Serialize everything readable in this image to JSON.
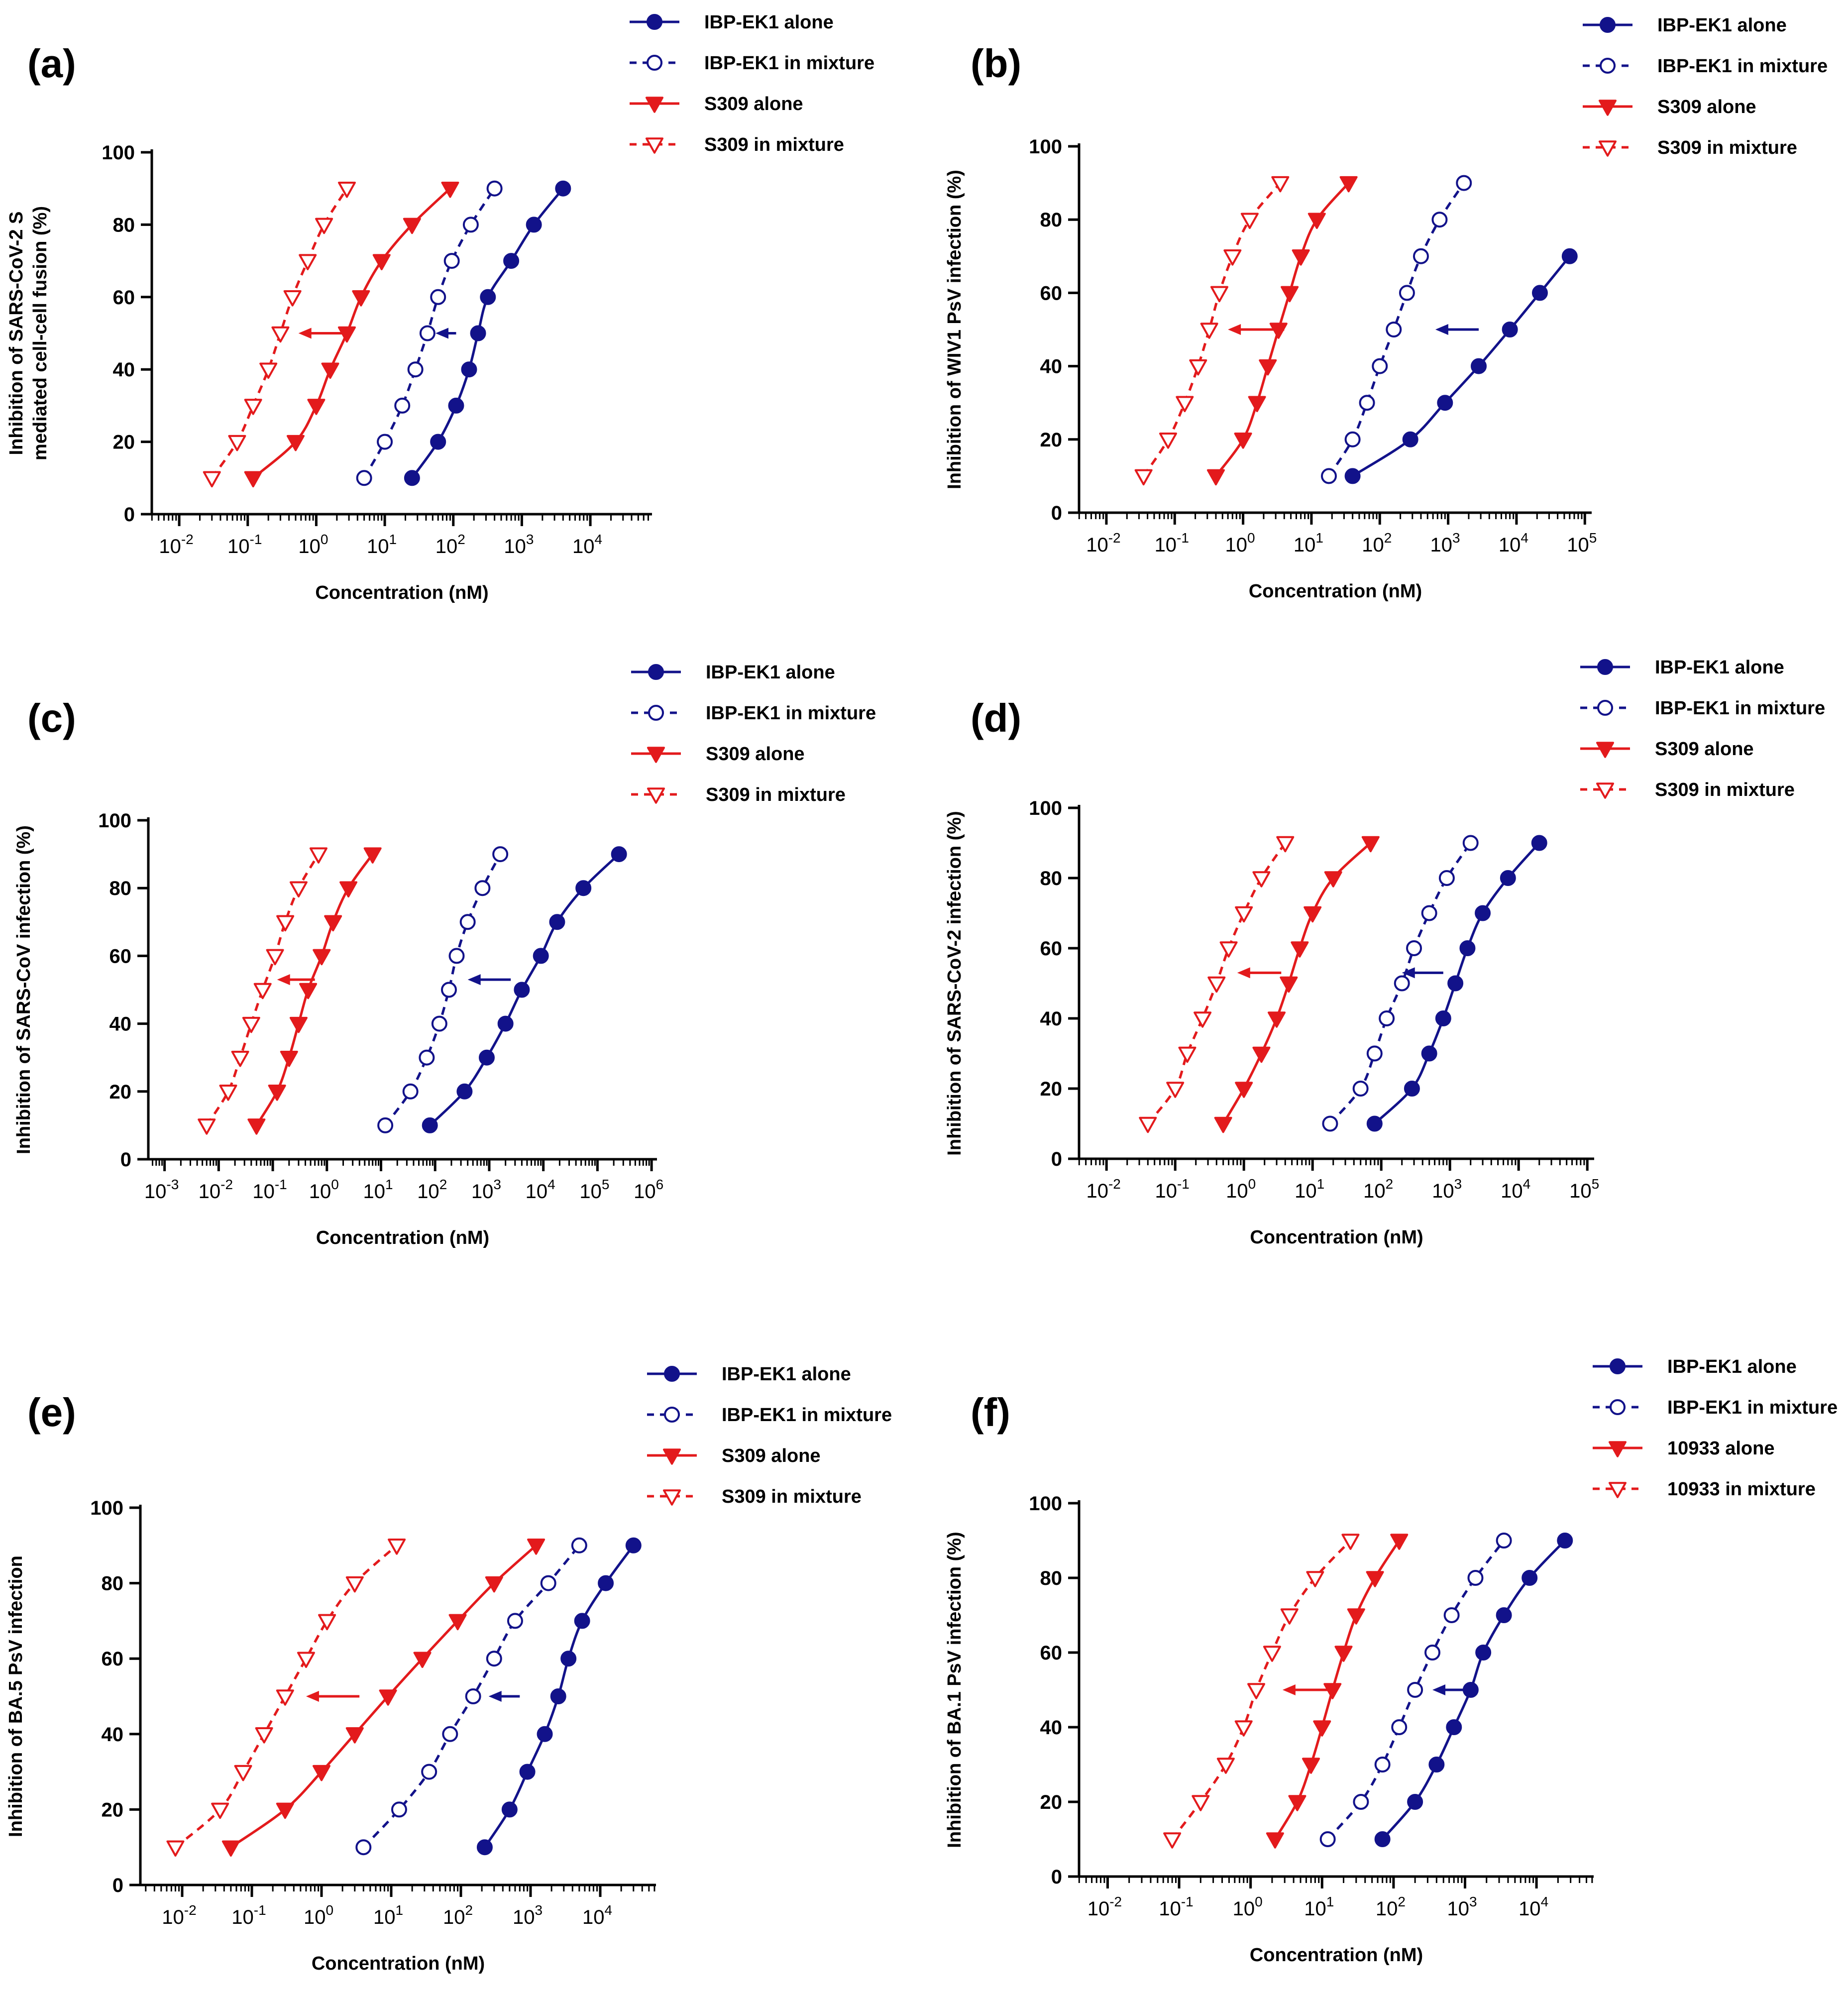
{
  "figure": {
    "note": "Six dose-response panels"
  },
  "colors": {
    "ibp": "#12128a",
    "s309": "#e31a1c",
    "axis": "#000000"
  },
  "chart_data": [
    {
      "type": "line",
      "panel_label": "(a)",
      "title": "",
      "xlabel": "Concentration (nM)",
      "ylabel_lines": [
        "Inhibition of SARS-CoV-2 S",
        "mediated cell-cell fusion (%)"
      ],
      "x_scale": "log10",
      "xlim_log10": [
        -2.4,
        4.9
      ],
      "ylim": [
        0,
        100
      ],
      "yticks": [
        0,
        20,
        40,
        60,
        80,
        100
      ],
      "xtick_exponents": [
        "-2",
        "-1",
        "0",
        "1",
        "2",
        "3",
        "4"
      ],
      "legend": [
        "IBP-EK1 alone",
        "IBP-EK1 in mixture",
        "S309 alone",
        "S309 in mixture"
      ],
      "series": [
        {
          "name": "IBP-EK1 alone",
          "style": "solid",
          "marker": "circle-filled",
          "x": [
            25,
            60,
            110,
            170,
            230,
            320,
            700,
            1500,
            4000
          ],
          "y": [
            10,
            20,
            30,
            40,
            50,
            60,
            70,
            80,
            90
          ]
        },
        {
          "name": "IBP-EK1 in mixture",
          "style": "dashed",
          "marker": "circle-open",
          "x": [
            5,
            10,
            18,
            28,
            42,
            60,
            95,
            180,
            400
          ],
          "y": [
            10,
            20,
            30,
            40,
            50,
            60,
            70,
            80,
            90
          ]
        },
        {
          "name": "S309 alone",
          "style": "solid",
          "marker": "triangle-filled",
          "x": [
            0.12,
            0.5,
            1,
            1.6,
            2.8,
            4.5,
            9,
            25,
            90
          ],
          "y": [
            10,
            20,
            30,
            40,
            50,
            60,
            70,
            80,
            90
          ]
        },
        {
          "name": "S309 in mixture",
          "style": "dashed",
          "marker": "triangle-open",
          "x": [
            0.03,
            0.07,
            0.12,
            0.2,
            0.3,
            0.45,
            0.75,
            1.3,
            2.8
          ],
          "y": [
            10,
            20,
            30,
            40,
            50,
            60,
            70,
            80,
            90
          ]
        }
      ],
      "arrows": [
        {
          "color": "s309",
          "from": 2.5,
          "to": 0.55,
          "y": 50
        },
        {
          "color": "ibp",
          "from": 110,
          "to": 55,
          "y": 50
        }
      ]
    },
    {
      "type": "line",
      "panel_label": "(b)",
      "title": "",
      "xlabel": "Concentration (nM)",
      "ylabel_lines": [
        "Inhibition of WIV1 PsV infection (%)"
      ],
      "x_scale": "log10",
      "xlim_log10": [
        -2.4,
        5.1
      ],
      "ylim": [
        0,
        100
      ],
      "yticks": [
        0,
        20,
        40,
        60,
        80,
        100
      ],
      "xtick_exponents": [
        "-2",
        "-1",
        "0",
        "1",
        "2",
        "3",
        "4",
        "5"
      ],
      "legend": [
        "IBP-EK1 alone",
        "IBP-EK1 in mixture",
        "S309 alone",
        "S309 in mixture"
      ],
      "series": [
        {
          "name": "IBP-EK1 alone",
          "style": "solid",
          "marker": "circle-filled",
          "x": [
            40,
            280,
            900,
            2800,
            8000,
            22000,
            60000
          ],
          "y": [
            10,
            20,
            30,
            40,
            50,
            60,
            70
          ]
        },
        {
          "name": "IBP-EK1 in mixture",
          "style": "dashed",
          "marker": "circle-open",
          "x": [
            18,
            40,
            65,
            100,
            160,
            250,
            400,
            750,
            1700
          ],
          "y": [
            10,
            20,
            30,
            40,
            50,
            60,
            70,
            80,
            90
          ]
        },
        {
          "name": "S309 alone",
          "style": "solid",
          "marker": "triangle-filled",
          "x": [
            0.4,
            1,
            1.6,
            2.3,
            3.3,
            4.8,
            7,
            12,
            35
          ],
          "y": [
            10,
            20,
            30,
            40,
            50,
            60,
            70,
            80,
            90
          ]
        },
        {
          "name": "S309 in mixture",
          "style": "dashed",
          "marker": "triangle-open",
          "x": [
            0.035,
            0.08,
            0.14,
            0.22,
            0.32,
            0.45,
            0.7,
            1.25,
            3.5
          ],
          "y": [
            10,
            20,
            30,
            40,
            50,
            60,
            70,
            80,
            90
          ]
        }
      ],
      "arrows": [
        {
          "color": "s309",
          "from": 4,
          "to": 0.6,
          "y": 50
        },
        {
          "color": "ibp",
          "from": 2800,
          "to": 650,
          "y": 50
        }
      ]
    },
    {
      "type": "line",
      "panel_label": "(c)",
      "title": "",
      "xlabel": "Concentration (nM)",
      "ylabel_lines": [
        "Inhibition of SARS-CoV infection (%)"
      ],
      "x_scale": "log10",
      "xlim_log10": [
        -3.3,
        6.1
      ],
      "ylim": [
        0,
        100
      ],
      "yticks": [
        0,
        20,
        40,
        60,
        80,
        100
      ],
      "xtick_exponents": [
        "-3",
        "-2",
        "-1",
        "0",
        "1",
        "2",
        "3",
        "4",
        "5",
        "6"
      ],
      "legend": [
        "IBP-EK1 alone",
        "IBP-EK1 in mixture",
        "S309 alone",
        "S309 in mixture"
      ],
      "series": [
        {
          "name": "IBP-EK1 alone",
          "style": "solid",
          "marker": "circle-filled",
          "x": [
            80,
            350,
            900,
            2000,
            4000,
            9000,
            18000,
            55000,
            250000
          ],
          "y": [
            10,
            20,
            30,
            40,
            50,
            60,
            70,
            80,
            90
          ]
        },
        {
          "name": "IBP-EK1 in mixture",
          "style": "dashed",
          "marker": "circle-open",
          "x": [
            12,
            35,
            70,
            120,
            180,
            250,
            400,
            750,
            1600
          ],
          "y": [
            10,
            20,
            30,
            40,
            50,
            60,
            70,
            80,
            90
          ]
        },
        {
          "name": "S309 alone",
          "style": "solid",
          "marker": "triangle-filled",
          "x": [
            0.05,
            0.12,
            0.2,
            0.3,
            0.45,
            0.8,
            1.3,
            2.5,
            7
          ],
          "y": [
            10,
            20,
            30,
            40,
            50,
            60,
            70,
            80,
            90
          ]
        },
        {
          "name": "S309 in mixture",
          "style": "dashed",
          "marker": "triangle-open",
          "x": [
            0.006,
            0.015,
            0.025,
            0.04,
            0.065,
            0.11,
            0.17,
            0.3,
            0.7
          ],
          "y": [
            10,
            20,
            30,
            40,
            50,
            60,
            70,
            80,
            90
          ]
        }
      ],
      "arrows": [
        {
          "color": "s309",
          "from": 0.6,
          "to": 0.12,
          "y": 53
        },
        {
          "color": "ibp",
          "from": 2500,
          "to": 400,
          "y": 53
        }
      ]
    },
    {
      "type": "line",
      "panel_label": "(d)",
      "title": "",
      "xlabel": "Concentration (nM)",
      "ylabel_lines": [
        "Inhibition of SARS-CoV-2 infection (%)"
      ],
      "x_scale": "log10",
      "xlim_log10": [
        -2.4,
        5.1
      ],
      "ylim": [
        0,
        100
      ],
      "yticks": [
        0,
        20,
        40,
        60,
        80,
        100
      ],
      "xtick_exponents": [
        "-2",
        "-1",
        "0",
        "1",
        "2",
        "3",
        "4",
        "5"
      ],
      "legend": [
        "IBP-EK1 alone",
        "IBP-EK1 in mixture",
        "S309 alone",
        "S309 in mixture"
      ],
      "series": [
        {
          "name": "IBP-EK1 alone",
          "style": "solid",
          "marker": "circle-filled",
          "x": [
            80,
            280,
            500,
            800,
            1200,
            1800,
            3000,
            7000,
            20000
          ],
          "y": [
            10,
            20,
            30,
            40,
            50,
            60,
            70,
            80,
            90
          ]
        },
        {
          "name": "IBP-EK1 in mixture",
          "style": "dashed",
          "marker": "circle-open",
          "x": [
            18,
            50,
            80,
            120,
            200,
            300,
            500,
            900,
            2000
          ],
          "y": [
            10,
            20,
            30,
            40,
            50,
            60,
            70,
            80,
            90
          ]
        },
        {
          "name": "S309 alone",
          "style": "solid",
          "marker": "triangle-filled",
          "x": [
            0.5,
            1,
            1.8,
            3,
            4.5,
            6.5,
            10,
            20,
            70
          ],
          "y": [
            10,
            20,
            30,
            40,
            50,
            60,
            70,
            80,
            90
          ]
        },
        {
          "name": "S309 in mixture",
          "style": "dashed",
          "marker": "triangle-open",
          "x": [
            0.04,
            0.1,
            0.15,
            0.25,
            0.4,
            0.6,
            1,
            1.8,
            4
          ],
          "y": [
            10,
            20,
            30,
            40,
            50,
            60,
            70,
            80,
            90
          ]
        }
      ],
      "arrows": [
        {
          "color": "s309",
          "from": 3.5,
          "to": 0.8,
          "y": 53
        },
        {
          "color": "ibp",
          "from": 800,
          "to": 200,
          "y": 53
        }
      ]
    },
    {
      "type": "line",
      "panel_label": "(e)",
      "title": "",
      "xlabel": "Concentration (nM)",
      "ylabel_lines": [
        "Inhibition of BA.5 PsV infection"
      ],
      "x_scale": "log10",
      "xlim_log10": [
        -2.6,
        4.8
      ],
      "ylim": [
        0,
        100
      ],
      "yticks": [
        0,
        20,
        40,
        60,
        80,
        100
      ],
      "xtick_exponents": [
        "-2",
        "-1",
        "0",
        "1",
        "2",
        "3",
        "4"
      ],
      "legend": [
        "IBP-EK1 alone",
        "IBP-EK1 in mixture",
        "S309 alone",
        "S309 in mixture"
      ],
      "series": [
        {
          "name": "IBP-EK1 alone",
          "style": "solid",
          "marker": "circle-filled",
          "x": [
            220,
            500,
            900,
            1600,
            2500,
            3500,
            5500,
            12000,
            30000
          ],
          "y": [
            10,
            20,
            30,
            40,
            50,
            60,
            70,
            80,
            90
          ]
        },
        {
          "name": "IBP-EK1 in mixture",
          "style": "dashed",
          "marker": "circle-open",
          "x": [
            4,
            13,
            35,
            70,
            150,
            300,
            600,
            1800,
            5000
          ],
          "y": [
            10,
            20,
            30,
            40,
            50,
            60,
            70,
            80,
            90
          ]
        },
        {
          "name": "S309 alone",
          "style": "solid",
          "marker": "triangle-filled",
          "x": [
            0.05,
            0.3,
            1,
            3,
            9,
            28,
            90,
            300,
            1200
          ],
          "y": [
            10,
            20,
            30,
            40,
            50,
            60,
            70,
            80,
            90
          ]
        },
        {
          "name": "S309 in mixture",
          "style": "dashed",
          "marker": "triangle-open",
          "x": [
            0.008,
            0.035,
            0.075,
            0.15,
            0.3,
            0.6,
            1.2,
            3,
            12
          ],
          "y": [
            10,
            20,
            30,
            40,
            50,
            60,
            70,
            80,
            90
          ]
        }
      ],
      "arrows": [
        {
          "color": "s309",
          "from": 3.5,
          "to": 0.6,
          "y": 50
        },
        {
          "color": "ibp",
          "from": 700,
          "to": 250,
          "y": 50
        }
      ]
    },
    {
      "type": "line",
      "panel_label": "(f)",
      "title": "",
      "xlabel": "Concentration (nM)",
      "ylabel_lines": [
        "Inhibition of BA.1 PsV infection (%)"
      ],
      "x_scale": "log10",
      "xlim_log10": [
        -2.4,
        4.8
      ],
      "ylim": [
        0,
        100
      ],
      "yticks": [
        0,
        20,
        40,
        60,
        80,
        100
      ],
      "xtick_exponents": [
        "-2",
        "-1",
        "0",
        "1",
        "2",
        "3",
        "4"
      ],
      "legend": [
        "IBP-EK1 alone",
        "IBP-EK1 in mixture",
        "10933 alone",
        "10933 in mixture"
      ],
      "series": [
        {
          "name": "IBP-EK1 alone",
          "style": "solid",
          "marker": "circle-filled",
          "x": [
            70,
            200,
            400,
            700,
            1200,
            1800,
            3500,
            8000,
            25000
          ],
          "y": [
            10,
            20,
            30,
            40,
            50,
            60,
            70,
            80,
            90
          ]
        },
        {
          "name": "IBP-EK1 in mixture",
          "style": "dashed",
          "marker": "circle-open",
          "x": [
            12,
            35,
            70,
            120,
            200,
            350,
            650,
            1400,
            3500
          ],
          "y": [
            10,
            20,
            30,
            40,
            50,
            60,
            70,
            80,
            90
          ]
        },
        {
          "name": "10933 alone",
          "style": "solid",
          "marker": "triangle-filled",
          "x": [
            2.2,
            4.5,
            7,
            10,
            14,
            20,
            30,
            55,
            120
          ],
          "y": [
            10,
            20,
            30,
            40,
            50,
            60,
            70,
            80,
            90
          ]
        },
        {
          "name": "10933 in mixture",
          "style": "dashed",
          "marker": "triangle-open",
          "x": [
            0.08,
            0.2,
            0.45,
            0.8,
            1.2,
            2,
            3.5,
            8,
            25
          ],
          "y": [
            10,
            20,
            30,
            40,
            50,
            60,
            70,
            80,
            90
          ]
        }
      ],
      "arrows": [
        {
          "color": "s309",
          "from": 12,
          "to": 2.8,
          "y": 50
        },
        {
          "color": "ibp",
          "from": 1000,
          "to": 350,
          "y": 50
        }
      ]
    }
  ]
}
